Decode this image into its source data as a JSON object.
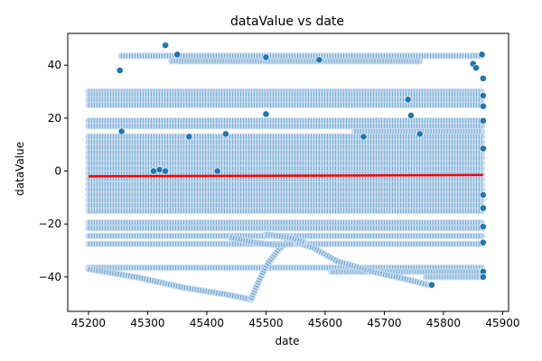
{
  "chart_data": {
    "type": "scatter",
    "title": "dataValue vs date",
    "xlabel": "date",
    "ylabel": "dataValue",
    "xlim": [
      45165,
      45910
    ],
    "ylim": [
      -53,
      52
    ],
    "xticks": [
      45200,
      45300,
      45400,
      45500,
      45600,
      45700,
      45800,
      45900
    ],
    "yticks": [
      -40,
      -20,
      0,
      20,
      40
    ],
    "grid": false,
    "colors": {
      "marker": "#1f77b4",
      "marker_edge": "#ffffff",
      "trend": "#ff0000"
    },
    "bands": [
      {
        "y": 43.5,
        "x_start": 45255,
        "x_end": 45865
      },
      {
        "y": 41.5,
        "x_start": 45340,
        "x_end": 45760
      },
      {
        "y": 30,
        "x_start": 45200,
        "x_end": 45865
      },
      {
        "y": 29,
        "x_start": 45200,
        "x_end": 45865
      },
      {
        "y": 27,
        "x_start": 45200,
        "x_end": 45865
      },
      {
        "y": 25,
        "x_start": 45200,
        "x_end": 45865
      },
      {
        "y": 19,
        "x_start": 45200,
        "x_end": 45865
      },
      {
        "y": 17,
        "x_start": 45200,
        "x_end": 45865
      },
      {
        "y": 15,
        "x_start": 45650,
        "x_end": 45865
      },
      {
        "y": 13,
        "x_start": 45200,
        "x_end": 45865
      },
      {
        "y": 11,
        "x_start": 45200,
        "x_end": 45865
      },
      {
        "y": 9,
        "x_start": 45200,
        "x_end": 45865
      },
      {
        "y": 7,
        "x_start": 45200,
        "x_end": 45865
      },
      {
        "y": 5,
        "x_start": 45200,
        "x_end": 45865
      },
      {
        "y": 3,
        "x_start": 45200,
        "x_end": 45865
      },
      {
        "y": 1,
        "x_start": 45200,
        "x_end": 45865
      },
      {
        "y": -1,
        "x_start": 45200,
        "x_end": 45865
      },
      {
        "y": -3,
        "x_start": 45200,
        "x_end": 45865
      },
      {
        "y": -5,
        "x_start": 45200,
        "x_end": 45865
      },
      {
        "y": -7,
        "x_start": 45200,
        "x_end": 45865
      },
      {
        "y": -9,
        "x_start": 45200,
        "x_end": 45865
      },
      {
        "y": -11,
        "x_start": 45200,
        "x_end": 45865
      },
      {
        "y": -13,
        "x_start": 45200,
        "x_end": 45865
      },
      {
        "y": -15,
        "x_start": 45200,
        "x_end": 45865
      },
      {
        "y": -19.5,
        "x_start": 45200,
        "x_end": 45865
      },
      {
        "y": -21.5,
        "x_start": 45200,
        "x_end": 45865
      },
      {
        "y": -24.5,
        "x_start": 45200,
        "x_end": 45865
      },
      {
        "y": -27.5,
        "x_start": 45200,
        "x_end": 45865
      },
      {
        "y": -36.5,
        "x_start": 45200,
        "x_end": 45865
      },
      {
        "y": -38,
        "x_start": 45610,
        "x_end": 45865
      },
      {
        "y": -40,
        "x_start": 45770,
        "x_end": 45865
      }
    ],
    "curves": [
      [
        [
          45200,
          -37
        ],
        [
          45280,
          -40
        ],
        [
          45360,
          -44
        ],
        [
          45430,
          -46.5
        ],
        [
          45475,
          -48.5
        ]
      ],
      [
        [
          45475,
          -48.5
        ],
        [
          45485,
          -43
        ],
        [
          45500,
          -36
        ],
        [
          45520,
          -30
        ],
        [
          45540,
          -26
        ]
      ],
      [
        [
          45540,
          -26
        ],
        [
          45580,
          -29
        ],
        [
          45620,
          -34
        ],
        [
          45680,
          -38
        ],
        [
          45740,
          -41
        ],
        [
          45775,
          -43
        ]
      ],
      [
        [
          45440,
          -25
        ],
        [
          45480,
          -27
        ],
        [
          45520,
          -28
        ],
        [
          45545,
          -27.5
        ]
      ],
      [
        [
          45500,
          -24
        ],
        [
          45540,
          -25
        ],
        [
          45565,
          -27
        ]
      ]
    ],
    "points": [
      [
        45253,
        38
      ],
      [
        45256,
        15
      ],
      [
        45330,
        47.5
      ],
      [
        45350,
        44
      ],
      [
        45370,
        13
      ],
      [
        45418,
        0
      ],
      [
        45432,
        14
      ],
      [
        45500,
        43
      ],
      [
        45500,
        21.5
      ],
      [
        45590,
        42
      ],
      [
        45665,
        13
      ],
      [
        45740,
        27
      ],
      [
        45745,
        21
      ],
      [
        45760,
        14
      ],
      [
        45850,
        40.5
      ],
      [
        45855,
        39
      ],
      [
        45865,
        44
      ],
      [
        45867,
        35
      ],
      [
        45867,
        28.5
      ],
      [
        45867,
        24.5
      ],
      [
        45867,
        19
      ],
      [
        45867,
        8.5
      ],
      [
        45867,
        -9
      ],
      [
        45867,
        -14
      ],
      [
        45867,
        -21
      ],
      [
        45867,
        -27
      ],
      [
        45867,
        -38
      ],
      [
        45867,
        -40
      ],
      [
        45310,
        0
      ],
      [
        45320,
        0.5
      ],
      [
        45330,
        0
      ],
      [
        45780,
        -43
      ]
    ],
    "trend": {
      "x": [
        45200,
        45867
      ],
      "y": [
        -2,
        -1.5
      ]
    }
  }
}
